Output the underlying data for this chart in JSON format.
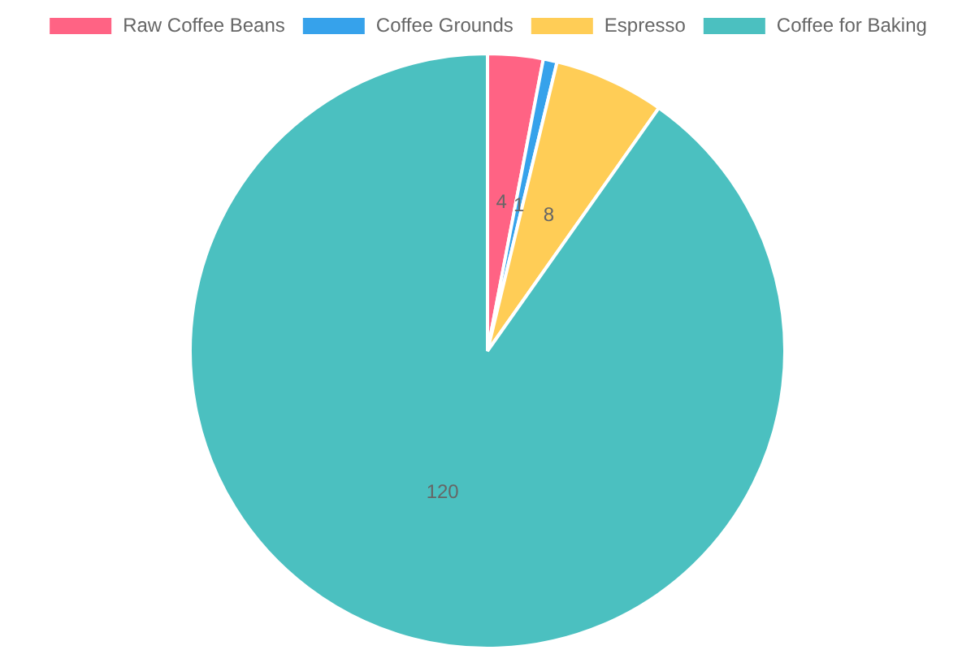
{
  "chart_data": {
    "type": "pie",
    "categories": [
      "Raw Coffee Beans",
      "Coffee Grounds",
      "Espresso",
      "Coffee for Baking"
    ],
    "values": [
      4,
      1,
      8,
      120
    ],
    "colors": [
      "#ff6384",
      "#36a2eb",
      "#ffcd56",
      "#4bc0c0"
    ],
    "legend": "top",
    "data_labels": true
  }
}
